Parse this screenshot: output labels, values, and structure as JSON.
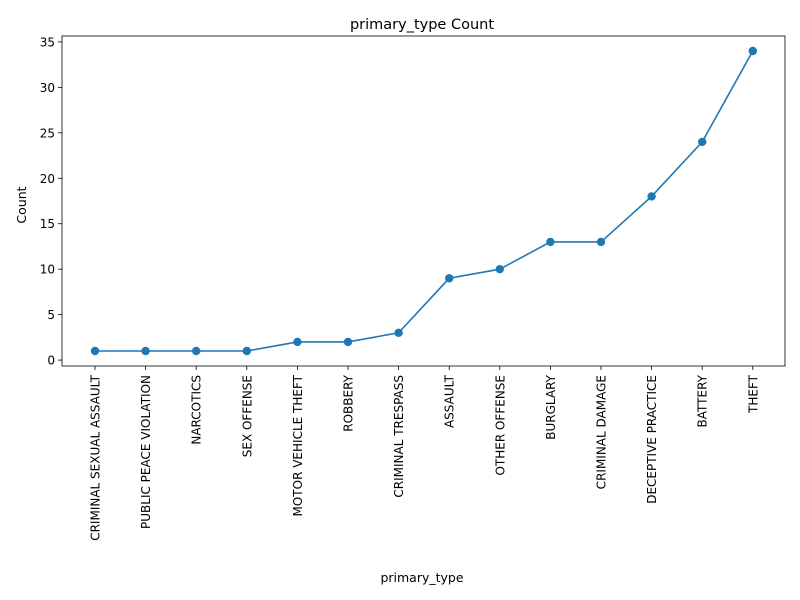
{
  "chart_data": {
    "type": "line",
    "title": "primary_type Count",
    "xlabel": "primary_type",
    "ylabel": "Count",
    "categories": [
      "CRIMINAL SEXUAL ASSAULT",
      "PUBLIC PEACE VIOLATION",
      "NARCOTICS",
      "SEX OFFENSE",
      "MOTOR VEHICLE THEFT",
      "ROBBERY",
      "CRIMINAL TRESPASS",
      "ASSAULT",
      "OTHER OFFENSE",
      "BURGLARY",
      "CRIMINAL DAMAGE",
      "DECEPTIVE PRACTICE",
      "BATTERY",
      "THEFT"
    ],
    "values": [
      1,
      1,
      1,
      1,
      2,
      2,
      3,
      9,
      10,
      13,
      13,
      18,
      24,
      34
    ],
    "yticks": [
      0,
      5,
      10,
      15,
      20,
      25,
      30,
      35
    ],
    "ylim": [
      -0.65,
      35.65
    ],
    "grid": false,
    "legend": "none",
    "line_color": "#1f77b4"
  }
}
